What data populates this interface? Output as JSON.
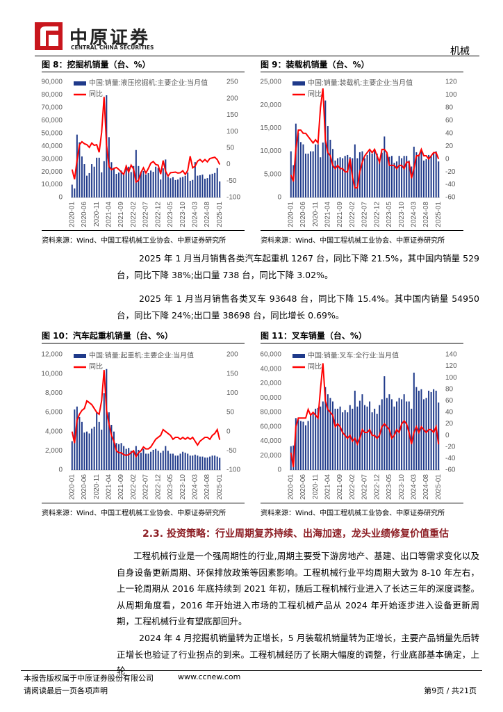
{
  "header": {
    "company": "中原证券",
    "company_en": "CENTRAL CHINA SECURITIES",
    "sector": "机械"
  },
  "chart_data": [
    {
      "type": "combo",
      "title": "图 8：挖掘机销量（台、%）",
      "source": "资料来源：Wind、中国工程机械工业协会、中原证券研究所",
      "legend": "upper-left",
      "categories": [
        "2020-01",
        null,
        null,
        null,
        null,
        "2020-06",
        null,
        null,
        null,
        null,
        "2020-11",
        null,
        null,
        null,
        null,
        "2021-04",
        null,
        null,
        null,
        null,
        "2021-09",
        null,
        null,
        null,
        null,
        "2022-02",
        null,
        null,
        null,
        null,
        "2022-07",
        null,
        null,
        null,
        null,
        "2022-12",
        null,
        null,
        null,
        null,
        "2023-05",
        null,
        null,
        null,
        null,
        "2023-10",
        null,
        null,
        null,
        null,
        "2024-03",
        null,
        null,
        null,
        null,
        "2024-08",
        null,
        null,
        null,
        null,
        "2025-01"
      ],
      "ylim": [
        0,
        90000
      ],
      "yticks": [
        0,
        {
          "value": 10000,
          "label": "10,000"
        },
        {
          "value": 20000,
          "label": "20,000"
        },
        {
          "value": 30000,
          "label": "30,000"
        },
        {
          "value": 40000,
          "label": "40,000"
        },
        {
          "value": 50000,
          "label": "50,000"
        },
        {
          "value": 60000,
          "label": "60,000"
        },
        {
          "value": 70000,
          "label": "70,000"
        },
        {
          "value": 80000,
          "label": "80,000"
        },
        {
          "value": 90000,
          "label": "90,000"
        }
      ],
      "y2lim": [
        -100,
        250
      ],
      "y2ticks": [
        -100,
        -50,
        0,
        50,
        100,
        150,
        200,
        250
      ],
      "series": [
        {
          "name": "中国:销量:液压挖掘机:主要企业:当月值",
          "type": "bar",
          "color": "#1f3a8a",
          "values": [
            10000,
            7000,
            49000,
            43000,
            32000,
            26000,
            17000,
            19000,
            26000,
            24000,
            31000,
            31000,
            19600,
            28300,
            79700,
            47000,
            27500,
            23100,
            18400,
            19400,
            21000,
            19000,
            25000,
            24000,
            19800,
            24500,
            37000,
            24500,
            20000,
            20700,
            17900,
            19000,
            21000,
            20000,
            24000,
            22900,
            14000,
            22700,
            29600,
            16000,
            15000,
            15800,
            13600,
            14000,
            15500,
            16000,
            16900,
            19400,
            13000,
            13700,
            27600,
            17000,
            17300,
            17800,
            14600,
            15100,
            17900,
            18500,
            19100,
            22900,
            12500
          ]
        },
        {
          "name": "同比",
          "type": "line",
          "axis": "y2",
          "color": "#ff0000",
          "values": [
            -15,
            -45,
            12,
            60,
            69,
            63,
            60,
            52,
            65,
            58,
            60,
            37,
            97,
            205,
            60,
            -6,
            -16,
            -12,
            -9,
            -15,
            -23,
            -30,
            -5,
            -23,
            -2,
            -14,
            -53,
            -48,
            -24,
            -10,
            -26,
            -12,
            4,
            9,
            0,
            -2,
            -29,
            12,
            -20,
            -35,
            -25,
            -24,
            -23,
            -26,
            -25,
            -19,
            -30,
            -18,
            25,
            -10,
            -5,
            10,
            15,
            8,
            15,
            8,
            18,
            20,
            22,
            15,
            0
          ]
        }
      ]
    },
    {
      "type": "combo",
      "title": "图 9：装载机销量（台、%）",
      "source": "资料来源：Wind、中国工程机械工业协会、中原证券研究所",
      "legend": "upper-left",
      "categories": [
        "2020-01",
        null,
        null,
        null,
        null,
        "2020-06",
        null,
        null,
        null,
        null,
        "2020-11",
        null,
        null,
        null,
        null,
        "2021-04",
        null,
        null,
        null,
        null,
        "2021-09",
        null,
        null,
        null,
        null,
        "2022-02",
        null,
        null,
        null,
        null,
        "2022-07",
        null,
        null,
        null,
        null,
        "2022-12",
        null,
        null,
        null,
        null,
        "2023-05",
        null,
        null,
        null,
        null,
        "2023-10",
        null,
        null,
        null,
        null,
        "2024-03",
        null,
        null,
        null,
        null,
        "2024-08",
        null,
        null,
        null,
        null,
        "2025-01"
      ],
      "ylim": [
        0,
        25000
      ],
      "yticks": [
        0,
        {
          "value": 5000,
          "label": "5,000"
        },
        {
          "value": 10000,
          "label": "10,000"
        },
        {
          "value": 15000,
          "label": "15,000"
        },
        {
          "value": 20000,
          "label": "20,000"
        },
        {
          "value": 25000,
          "label": "25,000"
        }
      ],
      "y2lim": [
        -60,
        120
      ],
      "y2ticks": [
        -60,
        -40,
        -20,
        0,
        20,
        40,
        60,
        80,
        100,
        120
      ],
      "series": [
        {
          "name": "中国:销量:装载机:主要企业:当月值",
          "type": "bar",
          "color": "#1f3a8a",
          "values": [
            10000,
            7000,
            16000,
            14000,
            12000,
            11500,
            9500,
            9500,
            10000,
            10000,
            11500,
            11500,
            8700,
            11900,
            21000,
            15500,
            12500,
            10500,
            8000,
            8500,
            8700,
            8500,
            9000,
            9200,
            8700,
            8500,
            11500,
            8500,
            9800,
            10000,
            8500,
            9200,
            10000,
            9500,
            10500,
            9500,
            8200,
            9700,
            13200,
            9500,
            8800,
            9000,
            7500,
            7800,
            9000,
            8500,
            9000,
            9000,
            8000,
            6700,
            11000,
            9800,
            9300,
            10200,
            8000,
            8300,
            9200,
            9000,
            9800,
            10000,
            7800
          ]
        },
        {
          "name": "同比",
          "type": "line",
          "axis": "y2",
          "color": "#ff0000",
          "values": [
            -25,
            -35,
            15,
            45,
            45,
            40,
            40,
            35,
            30,
            25,
            30,
            25,
            80,
            110,
            30,
            10,
            5,
            -10,
            -15,
            -10,
            -15,
            -15,
            -20,
            -20,
            0,
            -28,
            -45,
            -45,
            -20,
            -5,
            5,
            10,
            15,
            10,
            15,
            5,
            -5,
            15,
            15,
            10,
            -10,
            -10,
            -10,
            -15,
            -10,
            -10,
            -15,
            -5,
            -5,
            -30,
            -15,
            5,
            5,
            15,
            5,
            5,
            0,
            5,
            10,
            10,
            0
          ]
        }
      ]
    },
    {
      "type": "combo",
      "title": "图 10：汽车起重机销量（台、%）",
      "source": "资料来源：Wind、中国工程机械工业协会、中原证券研究所",
      "legend": "upper-left",
      "categories": [
        "2020-01",
        null,
        null,
        null,
        null,
        "2020-06",
        null,
        null,
        null,
        null,
        "2020-11",
        null,
        null,
        null,
        null,
        "2021-04",
        null,
        null,
        null,
        null,
        "2021-09",
        null,
        null,
        null,
        null,
        "2022-02",
        null,
        null,
        null,
        null,
        "2022-07",
        null,
        null,
        null,
        null,
        "2022-12",
        null,
        null,
        null,
        null,
        "2023-05",
        null,
        null,
        null,
        null,
        "2023-10",
        null,
        null,
        null,
        null,
        "2024-03",
        null,
        null,
        null,
        null,
        "2024-08",
        null,
        null,
        null,
        null,
        "2025-01"
      ],
      "ylim": [
        0,
        12000
      ],
      "yticks": [
        0,
        {
          "value": 2000,
          "label": "2,000"
        },
        {
          "value": 4000,
          "label": "4,000"
        },
        {
          "value": 6000,
          "label": "6,000"
        },
        {
          "value": 8000,
          "label": "8,000"
        },
        {
          "value": 10000,
          "label": "10,000"
        },
        {
          "value": 12000,
          "label": "12,000"
        }
      ],
      "y2lim": [
        -100,
        200
      ],
      "y2ticks": [
        -100,
        -50,
        0,
        50,
        100,
        150,
        200
      ],
      "series": [
        {
          "name": "中国:销量:起重机:主要企业:当月值",
          "type": "bar",
          "color": "#1f3a8a",
          "values": [
            3000,
            6300,
            6600,
            5500,
            5000,
            3900,
            4000,
            3800,
            4300,
            4500,
            6000,
            5000,
            4200,
            8000,
            10500,
            6000,
            4700,
            4000,
            2800,
            2700,
            2800,
            2500,
            2200,
            2300,
            2000,
            1900,
            2500,
            2100,
            1800,
            2200,
            1700,
            1700,
            1900,
            2100,
            2200,
            2000,
            1800,
            2000,
            2500,
            2000,
            1700,
            1700,
            1500,
            1500,
            1700,
            1900,
            1800,
            1700,
            1500,
            1500,
            1600,
            1500,
            1400,
            1400,
            1300,
            1300,
            1400,
            1500,
            1500,
            1400,
            1267
          ]
        },
        {
          "name": "同比",
          "type": "line",
          "axis": "y2",
          "color": "#ff0000",
          "values": [
            0,
            -30,
            30,
            45,
            55,
            60,
            80,
            75,
            70,
            60,
            50,
            45,
            80,
            160,
            55,
            20,
            -10,
            -25,
            -50,
            -55,
            -55,
            -60,
            -62,
            -60,
            -55,
            -50,
            -65,
            -55,
            -50,
            -40,
            -45,
            -45,
            -40,
            -30,
            -20,
            -15,
            -10,
            5,
            0,
            -5,
            -10,
            -20,
            -15,
            -15,
            -20,
            -15,
            -20,
            -15,
            -20,
            -15,
            -25,
            -35,
            -25,
            -20,
            -15,
            -15,
            -20,
            -10,
            -5,
            5,
            -21.5
          ]
        }
      ]
    },
    {
      "type": "combo",
      "title": "图 11：叉车销量（台、%）",
      "source": "资料来源：Wind、中国工程机械工业协会、中原证券研究所",
      "legend": "upper-left",
      "categories": [
        "2020-01",
        null,
        null,
        null,
        null,
        "2020-06",
        null,
        null,
        null,
        null,
        "2020-11",
        null,
        null,
        null,
        null,
        "2021-04",
        null,
        null,
        null,
        null,
        "2021-09",
        null,
        null,
        null,
        null,
        "2022-02",
        null,
        null,
        null,
        null,
        "2022-07",
        null,
        null,
        null,
        null,
        "2022-12",
        null,
        null,
        null,
        null,
        "2023-05",
        null,
        null,
        null,
        null,
        "2023-10",
        null,
        null,
        null,
        null,
        "2024-03",
        null,
        null,
        null,
        null,
        "2024-08",
        null,
        null,
        null,
        null,
        "2025-01"
      ],
      "ylim": [
        0,
        160000
      ],
      "yticks": [
        0,
        {
          "value": 20000,
          "label": "20,000"
        },
        {
          "value": 40000,
          "label": "40,000"
        },
        {
          "value": 60000,
          "label": "60,000"
        },
        {
          "value": 80000,
          "label": "80,000"
        },
        {
          "value": 100000,
          "label": "100,000"
        },
        {
          "value": 120000,
          "label": "120,000"
        },
        {
          "value": 140000,
          "label": "140,000"
        },
        {
          "value": 160000,
          "label": "160,000"
        }
      ],
      "y2lim": [
        -60,
        140
      ],
      "y2ticks": [
        -60,
        -40,
        -20,
        0,
        20,
        40,
        60,
        80,
        100,
        120,
        140
      ],
      "series": [
        {
          "name": "中国:销量:叉车:全行业:当月值",
          "type": "bar",
          "color": "#1f3a8a",
          "values": [
            33000,
            34000,
            72000,
            70000,
            68000,
            67000,
            62000,
            68000,
            76000,
            78000,
            85000,
            86000,
            88000,
            95000,
            115000,
            105000,
            100000,
            95000,
            85000,
            85000,
            88000,
            80000,
            83000,
            80000,
            90000,
            85000,
            110000,
            88000,
            96000,
            105000,
            90000,
            88000,
            95000,
            80000,
            85000,
            78000,
            90000,
            98000,
            130000,
            100000,
            105000,
            98000,
            88000,
            95000,
            100000,
            98000,
            105000,
            95000,
            95000,
            85000,
            135000,
            115000,
            110000,
            112000,
            98000,
            100000,
            110000,
            108000,
            112000,
            110000,
            93648
          ]
        },
        {
          "name": "同比",
          "type": "line",
          "axis": "y2",
          "color": "#ff0000",
          "values": [
            -30,
            -55,
            15,
            30,
            30,
            30,
            30,
            45,
            35,
            40,
            35,
            30,
            80,
            125,
            60,
            45,
            40,
            35,
            15,
            20,
            15,
            5,
            0,
            -5,
            0,
            -10,
            -5,
            -15,
            -5,
            10,
            5,
            5,
            10,
            0,
            0,
            -5,
            0,
            15,
            20,
            15,
            10,
            -5,
            0,
            10,
            5,
            20,
            25,
            20,
            5,
            -15,
            5,
            15,
            5,
            15,
            10,
            5,
            10,
            10,
            5,
            15,
            -15.4
          ]
        }
      ]
    }
  ],
  "paragraphs": [
    "2025 年 1 月当月销售各类汽车起重机 1267 台，同比下降 21.5%，其中国内销量 529 台，同比下降 38%;出口量 738 台，同比下降 3.02%。",
    "2025 年 1 月当月销售各类叉车 93648 台，同比下降 15.4%。其中国内销量 54950 台，同比下降 24%;出口量 38698 台，同比增长 0.69%。"
  ],
  "section": {
    "heading": "2.3. 投资策略：行业周期复苏持续、出海加速，龙头业绩修复价值重估",
    "paragraphs": [
      "工程机械行业是一个强周期性的行业,周期主要受下游房地产、基建、出口等需求变化以及自身设备更新周期、环保排放政策等因素影响。工程机械行业平均周期大致为 8-10 年左右，上一轮周期从 2016 年底持续到 2021 年初，随后工程机械行业进入了长达三年的深度调整。从周期角度看，2016 年开始进入市场的工程机械产品从 2024 年开始逐步进入设备更新周期，工程机械行业有望底部回升。",
      "2024 年 4 月挖掘机销量转为正增长，5 月装载机销量转为正增长，主要产品销量先后转正增长也验证了行业拐点的到来。工程机械经历了长期大幅度的调整，行业底部基本确定，上轮"
    ]
  },
  "footer": {
    "copyright": "本报告版权属于中原证券股份有限公司",
    "website": "www.ccnew.com",
    "notice": "请阅读最后一页各项声明",
    "page": "第9页 / 共21页"
  }
}
